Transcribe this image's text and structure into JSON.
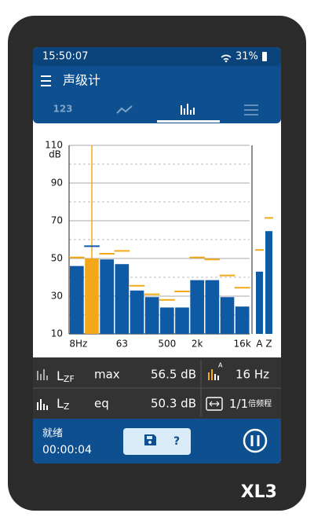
{
  "status": {
    "time": "15:50:07",
    "battery": "31%"
  },
  "app_bar": {
    "title": "声级计"
  },
  "tabs": {
    "first": "123"
  },
  "chart_data": {
    "type": "bar",
    "ylabel": "dB",
    "categories": [
      "8Hz",
      null,
      null,
      "63",
      null,
      null,
      "500",
      null,
      "2k",
      null,
      null,
      "16k"
    ],
    "values": [
      46,
      50,
      49.5,
      47,
      33,
      29.5,
      24,
      24,
      38.5,
      38.5,
      29.5,
      24.5
    ],
    "max_values": [
      50.5,
      56.5,
      52.5,
      54,
      35.5,
      31,
      28,
      32.5,
      50.5,
      49.5,
      41,
      34.5
    ],
    "cursor_index": 1,
    "overall": {
      "categories": [
        "A",
        "Z"
      ],
      "values": [
        43,
        64.5
      ],
      "max_values": [
        54.5,
        71.5
      ]
    },
    "color": "#0f5aa5",
    "max_color": "#f2a818",
    "cursor_color": "#f2a818",
    "cursor_max_color": "#0f5aa5",
    "ylim": [
      10,
      110
    ],
    "yticks": [
      10,
      30,
      50,
      70,
      90,
      110
    ],
    "yticks_minor": [
      20,
      40,
      60,
      80,
      100
    ],
    "grid": true
  },
  "readouts": {
    "row1": {
      "symbol": "L",
      "sub": "ZF",
      "kind": "max",
      "value": "56.5 dB",
      "band": "16 Hz"
    },
    "row2": {
      "symbol": "L",
      "sub": "Z",
      "kind": "eq",
      "value": "50.3 dB",
      "res": "1/1",
      "res_unit": "倍频程"
    }
  },
  "footer": {
    "state": "就绪",
    "elapsed": "00:00:04",
    "help": "?"
  },
  "device": {
    "model": "XL3"
  }
}
